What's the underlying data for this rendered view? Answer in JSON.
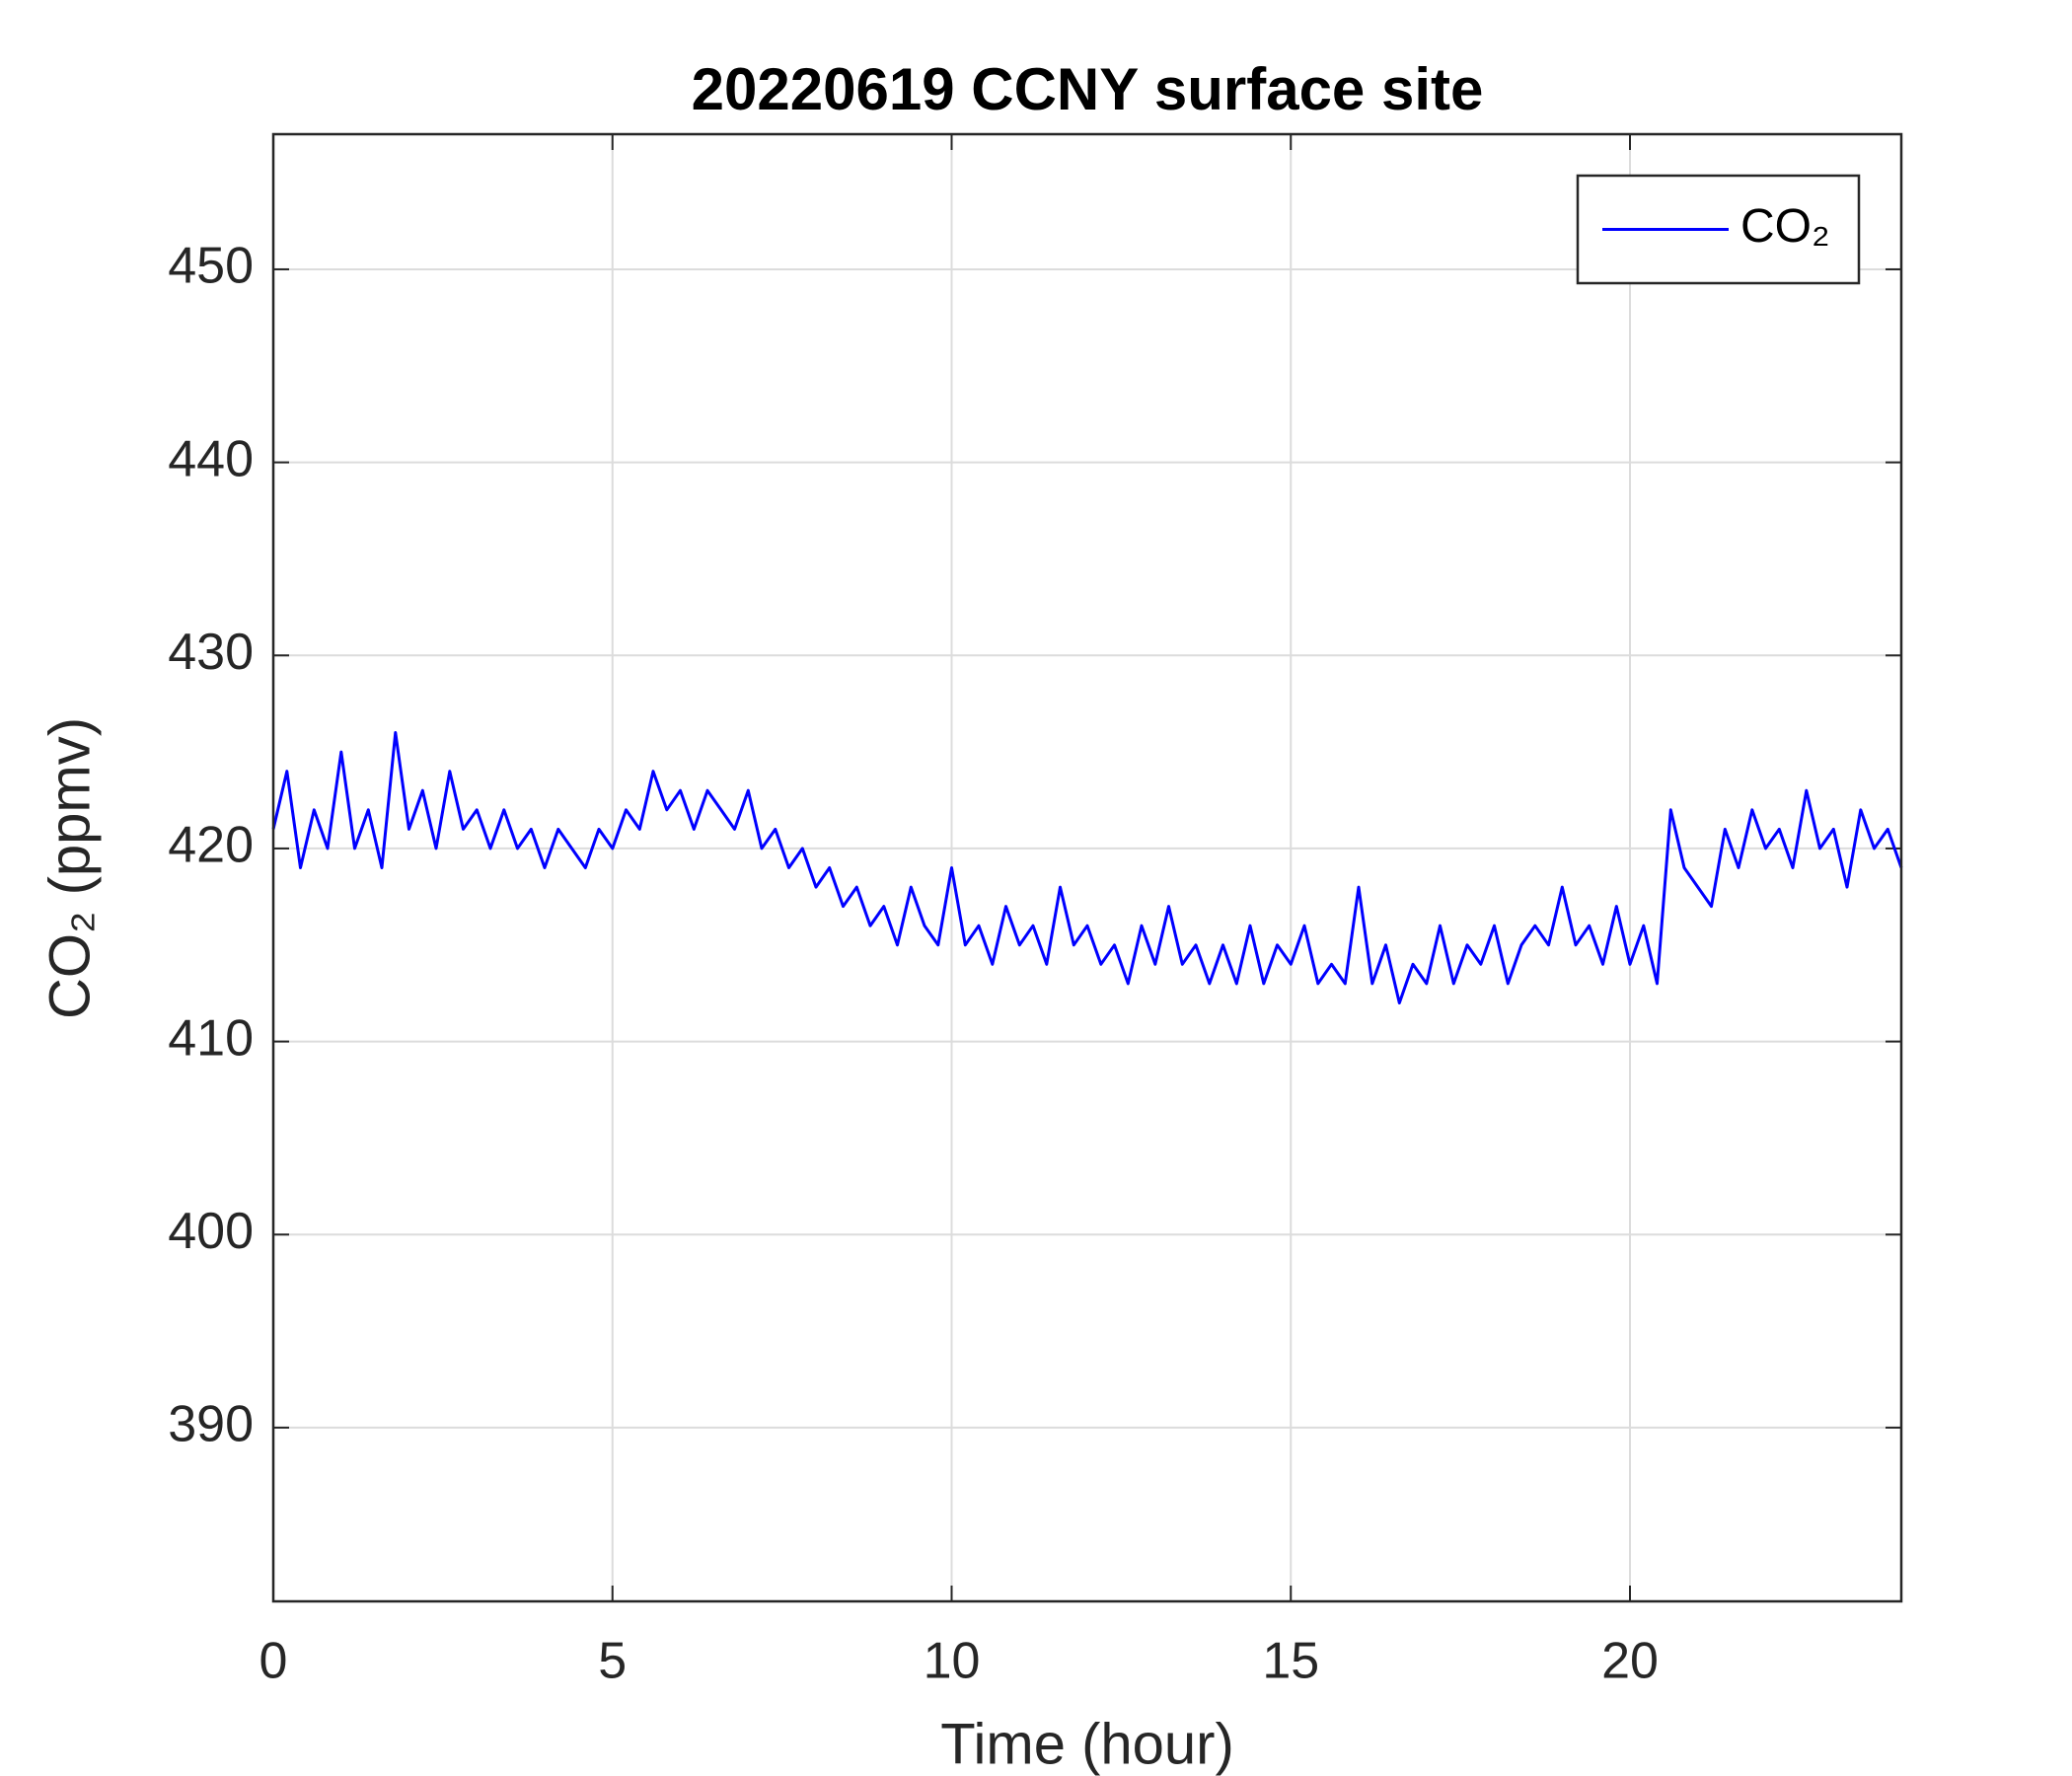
{
  "chart_data": {
    "type": "line",
    "title": "20220619 CCNY surface site",
    "x_label": "Time (hour)",
    "y_label": "CO₂ (ppmv)",
    "x": [
      0,
      0.2,
      0.4,
      0.6,
      0.8,
      1,
      1.2,
      1.4,
      1.6,
      1.8,
      2,
      2.2,
      2.4,
      2.6,
      2.8,
      3,
      3.2,
      3.4,
      3.6,
      3.8,
      4,
      4.2,
      4.4,
      4.6,
      4.8,
      5,
      5.2,
      5.4,
      5.6,
      5.8,
      6,
      6.2,
      6.4,
      6.6,
      6.8,
      7,
      7.2,
      7.4,
      7.6,
      7.8,
      8,
      8.2,
      8.4,
      8.6,
      8.8,
      9,
      9.2,
      9.4,
      9.6,
      9.8,
      10,
      10.2,
      10.4,
      10.6,
      10.8,
      11,
      11.2,
      11.4,
      11.6,
      11.8,
      12,
      12.2,
      12.4,
      12.6,
      12.8,
      13,
      13.2,
      13.4,
      13.6,
      13.8,
      14,
      14.2,
      14.4,
      14.6,
      14.8,
      15,
      15.2,
      15.4,
      15.6,
      15.8,
      16,
      16.2,
      16.4,
      16.6,
      16.8,
      17,
      17.2,
      17.4,
      17.6,
      17.8,
      18,
      18.2,
      18.4,
      18.6,
      18.8,
      19,
      19.2,
      19.4,
      19.6,
      19.8,
      20,
      20.2,
      20.4,
      20.6,
      20.8,
      21,
      21.2,
      21.4,
      21.6,
      21.8,
      22,
      22.2,
      22.4,
      22.6,
      22.8,
      23,
      23.2,
      23.4,
      23.6,
      23.8,
      24
    ],
    "series": [
      {
        "name": "CO₂",
        "color": "#0000ff",
        "values": [
          421,
          424,
          419,
          422,
          420,
          425,
          420,
          422,
          419,
          426,
          421,
          423,
          420,
          424,
          421,
          422,
          420,
          422,
          420,
          421,
          419,
          421,
          420,
          419,
          421,
          420,
          422,
          421,
          424,
          422,
          423,
          421,
          423,
          422,
          421,
          423,
          420,
          421,
          419,
          420,
          418,
          419,
          417,
          418,
          416,
          417,
          415,
          418,
          416,
          415,
          419,
          415,
          416,
          414,
          417,
          415,
          416,
          414,
          418,
          415,
          416,
          414,
          415,
          413,
          416,
          414,
          417,
          414,
          415,
          413,
          415,
          413,
          416,
          413,
          415,
          414,
          416,
          413,
          414,
          413,
          418,
          413,
          415,
          412,
          414,
          413,
          416,
          413,
          415,
          414,
          416,
          413,
          415,
          416,
          415,
          418,
          415,
          416,
          414,
          417,
          414,
          416,
          413,
          422,
          419,
          418,
          417,
          421,
          419,
          422,
          420,
          421,
          419,
          423,
          420,
          421,
          418,
          422,
          420,
          421,
          419
        ]
      }
    ],
    "xlim": [
      0,
      24
    ],
    "xticks": [
      0,
      5,
      10,
      15,
      20
    ],
    "ylim": [
      381,
      457
    ],
    "yticks": [
      390,
      400,
      410,
      420,
      430,
      440,
      450
    ],
    "grid": true,
    "legend": "upper right"
  }
}
